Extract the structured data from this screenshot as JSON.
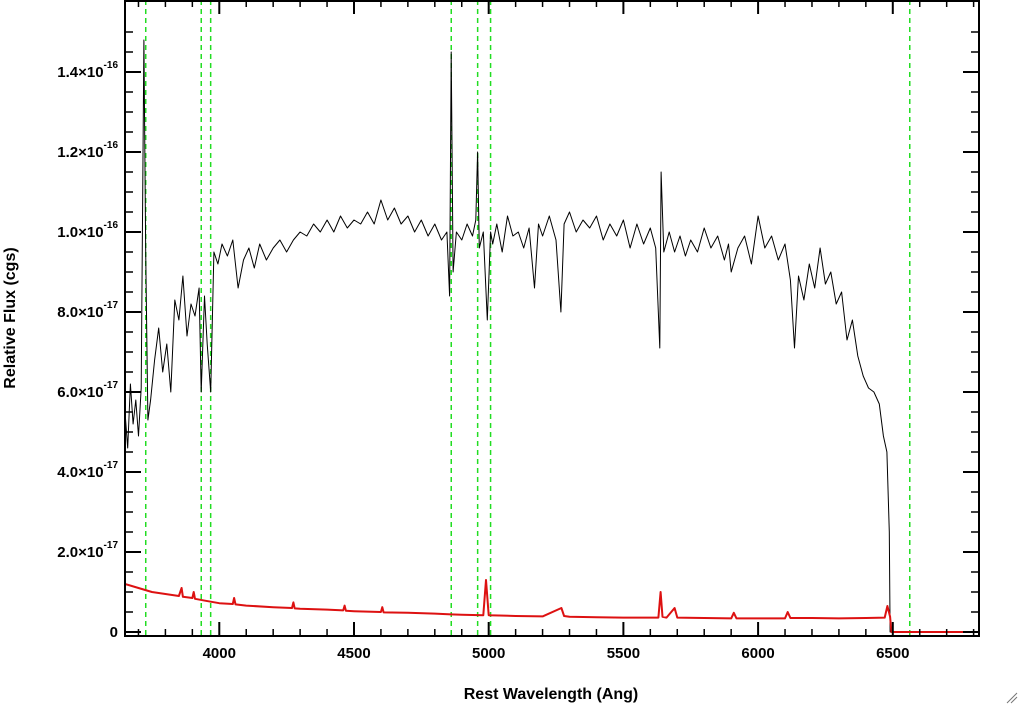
{
  "chart_data": {
    "type": "line",
    "title": "",
    "xlabel": "Rest Wavelength (Ang)",
    "ylabel": "Relative Flux (cgs)",
    "xlim": [
      3650,
      6820
    ],
    "ylim": [
      -1e-18,
      1.58e-16
    ],
    "grid": false,
    "x_ticks": [
      4000,
      4500,
      5000,
      5500,
      6000,
      6500
    ],
    "x_tick_labels": [
      "4000",
      "4500",
      "5000",
      "5500",
      "6000",
      "6500"
    ],
    "y_ticks": [
      {
        "value": 0,
        "mantissa": "0",
        "exponent": ""
      },
      {
        "value": 2e-17,
        "mantissa": "2.0×10",
        "exponent": "-17"
      },
      {
        "value": 4e-17,
        "mantissa": "4.0×10",
        "exponent": "-17"
      },
      {
        "value": 6e-17,
        "mantissa": "6.0×10",
        "exponent": "-17"
      },
      {
        "value": 8e-17,
        "mantissa": "8.0×10",
        "exponent": "-17"
      },
      {
        "value": 1e-16,
        "mantissa": "1.0×10",
        "exponent": "-16"
      },
      {
        "value": 1.2e-16,
        "mantissa": "1.2×10",
        "exponent": "-16"
      },
      {
        "value": 1.4e-16,
        "mantissa": "1.4×10",
        "exponent": "-16"
      }
    ],
    "reference_lines": {
      "color": "#22dd22",
      "style": "dashed",
      "x": [
        3727,
        3933,
        3968,
        4861,
        4959,
        5007,
        6563
      ]
    },
    "series": [
      {
        "color": "#000000",
        "x": [
          3650,
          3660,
          3670,
          3680,
          3690,
          3700,
          3710,
          3720,
          3727,
          3735,
          3745,
          3760,
          3775,
          3790,
          3805,
          3820,
          3835,
          3850,
          3865,
          3880,
          3895,
          3910,
          3925,
          3933,
          3945,
          3955,
          3968,
          3980,
          3995,
          4010,
          4030,
          4050,
          4070,
          4090,
          4110,
          4130,
          4150,
          4175,
          4200,
          4225,
          4250,
          4275,
          4300,
          4325,
          4350,
          4375,
          4400,
          4425,
          4450,
          4475,
          4500,
          4525,
          4550,
          4575,
          4600,
          4625,
          4650,
          4675,
          4700,
          4725,
          4750,
          4775,
          4800,
          4825,
          4845,
          4855,
          4861,
          4868,
          4880,
          4900,
          4920,
          4940,
          4952,
          4959,
          4965,
          4980,
          4995,
          5007,
          5015,
          5030,
          5050,
          5070,
          5090,
          5110,
          5130,
          5150,
          5170,
          5185,
          5200,
          5225,
          5250,
          5268,
          5280,
          5300,
          5325,
          5350,
          5375,
          5400,
          5425,
          5450,
          5475,
          5500,
          5525,
          5550,
          5575,
          5600,
          5620,
          5635,
          5640,
          5650,
          5670,
          5690,
          5710,
          5730,
          5750,
          5775,
          5800,
          5825,
          5850,
          5875,
          5890,
          5900,
          5925,
          5950,
          5975,
          6000,
          6025,
          6050,
          6075,
          6100,
          6120,
          6135,
          6150,
          6170,
          6190,
          6210,
          6230,
          6250,
          6270,
          6290,
          6310,
          6330,
          6350,
          6370,
          6390,
          6410,
          6430,
          6450,
          6465,
          6478,
          6487,
          6490,
          6495,
          6500,
          6550,
          6650,
          6750,
          6820
        ],
        "y": [
          5.5e-17,
          4.6e-17,
          6.2e-17,
          5.2e-17,
          5.8e-17,
          4.9e-17,
          6.1e-17,
          1.48e-16,
          9.5e-17,
          5.3e-17,
          5.8e-17,
          6.8e-17,
          7.6e-17,
          6.5e-17,
          7.2e-17,
          6e-17,
          8.3e-17,
          7.8e-17,
          8.9e-17,
          7.4e-17,
          8.2e-17,
          7.9e-17,
          8.6e-17,
          6e-17,
          8.4e-17,
          7.2e-17,
          6e-17,
          9.5e-17,
          9.2e-17,
          9.7e-17,
          9.4e-17,
          9.8e-17,
          8.6e-17,
          9.3e-17,
          9.6e-17,
          9.1e-17,
          9.7e-17,
          9.3e-17,
          9.6e-17,
          9.8e-17,
          9.5e-17,
          9.8e-17,
          1e-16,
          9.9e-17,
          1.02e-16,
          1e-16,
          1.03e-16,
          1e-16,
          1.04e-16,
          1.01e-16,
          1.03e-16,
          1.02e-16,
          1.05e-16,
          1.02e-16,
          1.08e-16,
          1.03e-16,
          1.06e-16,
          1.02e-16,
          1.04e-16,
          1e-16,
          1.03e-16,
          9.9e-17,
          1.02e-16,
          9.8e-17,
          1e-16,
          8.4e-17,
          1.45e-16,
          9e-17,
          1e-16,
          9.8e-17,
          1.02e-16,
          9.9e-17,
          1.03e-16,
          1.2e-16,
          9.6e-17,
          1e-16,
          7.8e-17,
          1e-16,
          9.7e-17,
          1.02e-16,
          9.5e-17,
          1.04e-16,
          9.9e-17,
          1e-16,
          9.6e-17,
          1.01e-16,
          8.6e-17,
          1.02e-16,
          9.9e-17,
          1.04e-16,
          9.8e-17,
          8e-17,
          1.02e-16,
          1.05e-16,
          1e-16,
          1.03e-16,
          1.01e-16,
          1.04e-16,
          9.8e-17,
          1.02e-16,
          9.9e-17,
          1.03e-16,
          9.6e-17,
          1.02e-16,
          9.7e-17,
          1.01e-16,
          9.6e-17,
          7.1e-17,
          1.15e-16,
          9.5e-17,
          1e-16,
          9.5e-17,
          9.9e-17,
          9.4e-17,
          9.8e-17,
          9.5e-17,
          1.01e-16,
          9.6e-17,
          9.9e-17,
          9.3e-17,
          9.7e-17,
          9e-17,
          9.6e-17,
          9.9e-17,
          9.2e-17,
          1.04e-16,
          9.6e-17,
          9.9e-17,
          9.3e-17,
          9.7e-17,
          8.8e-17,
          7.1e-17,
          8.9e-17,
          8.3e-17,
          9.2e-17,
          8.6e-17,
          9.6e-17,
          8.7e-17,
          9e-17,
          8.2e-17,
          8.5e-17,
          7.3e-17,
          7.8e-17,
          6.9e-17,
          6.4e-17,
          6.1e-17,
          6e-17,
          5.7e-17,
          4.9e-17,
          4.5e-17,
          2.5e-17,
          0,
          0,
          0,
          0,
          0,
          0,
          0
        ]
      },
      {
        "color": "#dd1111",
        "x": [
          3650,
          3700,
          3750,
          3800,
          3850,
          3860,
          3865,
          3900,
          3905,
          3910,
          3950,
          4000,
          4050,
          4055,
          4060,
          4100,
          4200,
          4270,
          4275,
          4280,
          4300,
          4400,
          4460,
          4465,
          4470,
          4500,
          4600,
          4605,
          4610,
          4700,
          4800,
          4860,
          4900,
          4980,
          4990,
          5000,
          5100,
          5200,
          5270,
          5280,
          5300,
          5400,
          5500,
          5580,
          5600,
          5630,
          5638,
          5645,
          5660,
          5690,
          5700,
          5800,
          5900,
          5910,
          5920,
          6000,
          6100,
          6110,
          6120,
          6200,
          6300,
          6400,
          6470,
          6480,
          6490,
          6495,
          6500,
          6600,
          6700,
          6820
        ],
        "y": [
          1.2e-17,
          1.1e-17,
          1e-17,
          9.5e-18,
          9e-18,
          1.1e-17,
          8.8e-18,
          8.5e-18,
          1e-17,
          8.3e-18,
          7.8e-18,
          7.2e-18,
          7e-18,
          8.5e-18,
          6.9e-18,
          6.6e-18,
          6.2e-18,
          6e-18,
          7.4e-18,
          5.9e-18,
          5.8e-18,
          5.6e-18,
          5.4e-18,
          6.6e-18,
          5.3e-18,
          5.2e-18,
          5e-18,
          6.2e-18,
          4.9e-18,
          4.8e-18,
          4.6e-18,
          4.4e-18,
          4.3e-18,
          4.2e-18,
          1.3e-17,
          4.2e-18,
          4e-18,
          3.9e-18,
          6e-18,
          4e-18,
          3.8e-18,
          3.7e-18,
          3.6e-18,
          3.6e-18,
          3.6e-18,
          3.6e-18,
          1e-17,
          3.8e-18,
          3.6e-18,
          6e-18,
          3.6e-18,
          3.5e-18,
          3.4e-18,
          4.8e-18,
          3.4e-18,
          3.4e-18,
          3.4e-18,
          5e-18,
          3.5e-18,
          3.5e-18,
          3.4e-18,
          3.5e-18,
          3.6e-18,
          6.5e-18,
          3.8e-18,
          0,
          0,
          0,
          0,
          0
        ]
      }
    ]
  }
}
